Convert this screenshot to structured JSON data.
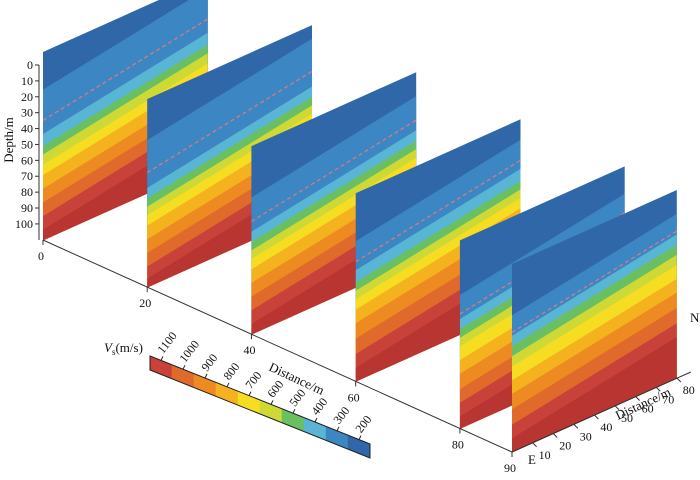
{
  "chart_data": {
    "type": "heatmap",
    "depth_axis": {
      "label": "Depth/m",
      "ticks": [
        "0",
        "10",
        "20",
        "30",
        "40",
        "50",
        "60",
        "70",
        "80",
        "90",
        "100"
      ],
      "range": [
        0,
        110
      ]
    },
    "ew_axis": {
      "label": "Distance/m",
      "ticks": [
        "0",
        "20",
        "40",
        "60",
        "80",
        "90"
      ],
      "end_label": "E"
    },
    "ns_axis": {
      "label": "Distance/m",
      "ticks": [
        "10",
        "20",
        "30",
        "40",
        "50",
        "60",
        "70",
        "80"
      ],
      "end_label": "N",
      "range": [
        0,
        80
      ]
    },
    "colorbar": {
      "label": "Vs(m/s)",
      "label_main": "V",
      "label_sub": "s",
      "label_rest": "(m/s)",
      "ticks": [
        "1100",
        "1000",
        "900",
        "800",
        "700",
        "600",
        "500",
        "400",
        "300",
        "200"
      ],
      "range": [
        1150,
        150
      ]
    },
    "sections": [
      {
        "position": 0,
        "velocity_boundaries": {
          "200": 22,
          "300": 48,
          "400": 55,
          "500": 60,
          "600": 66,
          "700": 72,
          "800": 80,
          "900": 88,
          "1000": 96,
          "1100": 104
        },
        "low_velocity_band": [
          26,
          42
        ]
      },
      {
        "position": 20,
        "velocity_boundaries": {
          "200": 24,
          "300": 52,
          "400": 58,
          "500": 63,
          "600": 68,
          "700": 74,
          "800": 82,
          "900": 90,
          "1000": 98,
          "1100": 105
        },
        "low_velocity_band": [
          28,
          46
        ]
      },
      {
        "position": 40,
        "velocity_boundaries": {
          "200": 30,
          "300": 50,
          "400": 56,
          "500": 61,
          "600": 66,
          "700": 72,
          "800": 80,
          "900": 88,
          "1000": 96,
          "1100": 104
        },
        "low_velocity_band": [
          32,
          44
        ]
      },
      {
        "position": 60,
        "velocity_boundaries": {
          "200": 28,
          "300": 45,
          "400": 52,
          "500": 57,
          "600": 62,
          "700": 68,
          "800": 76,
          "900": 85,
          "1000": 94,
          "1100": 102
        },
        "low_velocity_band": [
          30,
          38
        ]
      },
      {
        "position": 80,
        "velocity_boundaries": {
          "200": 32,
          "300": 46,
          "400": 52,
          "500": 57,
          "600": 62,
          "700": 70,
          "800": 78,
          "900": 87,
          "1000": 95,
          "1100": 103
        },
        "low_velocity_band": [
          34,
          40
        ]
      },
      {
        "position": 90,
        "velocity_boundaries": {
          "200": 30,
          "300": 42,
          "400": 48,
          "500": 54,
          "600": 60,
          "700": 68,
          "800": 76,
          "900": 85,
          "1000": 94,
          "1100": 102
        },
        "low_velocity_band": [
          32,
          36
        ]
      }
    ],
    "colors": {
      "200": "#2f67a8",
      "300": "#3d86c4",
      "400": "#58b6d4",
      "500": "#6bbf63",
      "600": "#cfd935",
      "700": "#f6dd22",
      "800": "#f5b21f",
      "900": "#ee8a22",
      "1000": "#e06a2b",
      "1100": "#c9423a",
      "bottom": "#b93531"
    }
  }
}
